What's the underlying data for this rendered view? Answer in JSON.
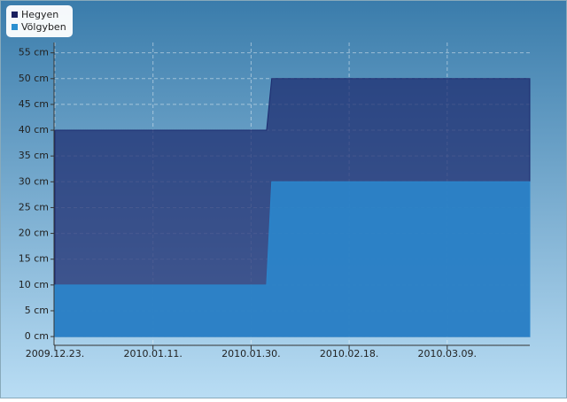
{
  "chart_data": {
    "type": "area",
    "x": [
      "2009.12.23.",
      "2010.02.02.",
      "2010.02.03.",
      "2010.03.25."
    ],
    "series": [
      {
        "name": "Hegyen",
        "color": "#1c2a6e",
        "values": [
          40,
          40,
          50,
          50
        ]
      },
      {
        "name": "Völgyben",
        "color": "#2b86cc",
        "values": [
          10,
          10,
          30,
          30
        ]
      }
    ],
    "xlim": [
      "2009.12.23.",
      "2010.03.25."
    ],
    "xticks": [
      "2009.12.23.",
      "2010.01.11.",
      "2010.01.30.",
      "2010.02.18.",
      "2010.03.09."
    ],
    "ylim": [
      -1.7,
      57
    ],
    "yticks": [
      {
        "value": 0,
        "label": "0 cm"
      },
      {
        "value": 5,
        "label": "5 cm"
      },
      {
        "value": 10,
        "label": "10 cm"
      },
      {
        "value": 15,
        "label": "15 cm"
      },
      {
        "value": 20,
        "label": "20 cm"
      },
      {
        "value": 25,
        "label": "25 cm"
      },
      {
        "value": 30,
        "label": "30 cm"
      },
      {
        "value": 35,
        "label": "35 cm"
      },
      {
        "value": 40,
        "label": "40 cm"
      },
      {
        "value": 45,
        "label": "45 cm"
      },
      {
        "value": 50,
        "label": "50 cm"
      },
      {
        "value": 55,
        "label": "55 cm"
      }
    ],
    "grid": true,
    "legend": "top-left"
  }
}
